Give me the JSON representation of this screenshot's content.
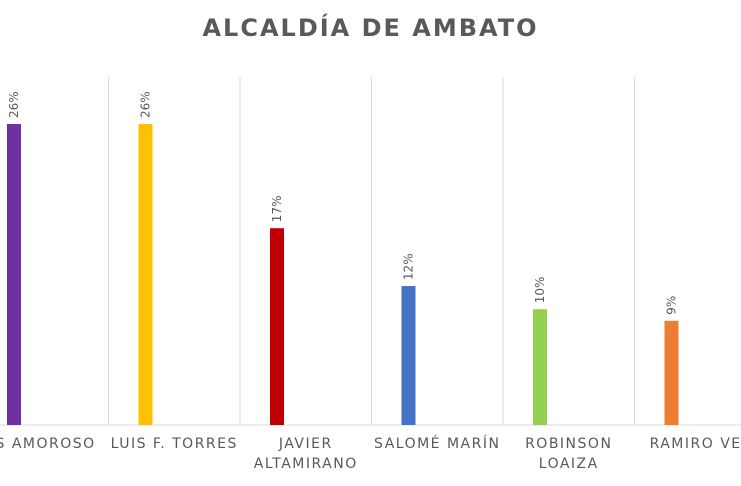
{
  "chart_data": {
    "type": "bar",
    "title": "ALCALDÍA DE AMBATO",
    "categories": [
      [
        "IS AMOROSO"
      ],
      [
        "LUIS F. TORRES"
      ],
      [
        "JAVIER",
        "ALTAMIRANO"
      ],
      [
        "SALOMÉ MARÍN"
      ],
      [
        "ROBINSON",
        "LOAIZA"
      ],
      [
        "RAMIRO VEL"
      ]
    ],
    "values": [
      26,
      26,
      17,
      12,
      10,
      9
    ],
    "data_labels": [
      "26%",
      "26%",
      "17%",
      "12%",
      "10%",
      "9%"
    ],
    "colors": [
      "#7030A0",
      "#FFC000",
      "#C00000",
      "#4472C4",
      "#92D050",
      "#ED7D31"
    ],
    "ylim": [
      0,
      30
    ],
    "gridlines": "vertical",
    "legend": "none"
  }
}
